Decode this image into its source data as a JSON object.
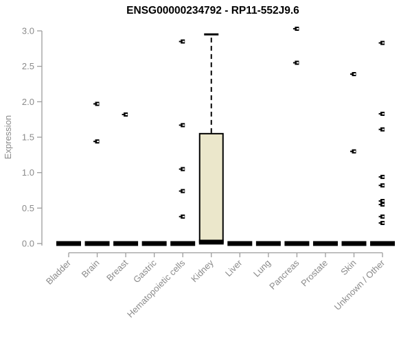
{
  "chart_data": {
    "type": "box",
    "title": "ENSG00000234792 - RP11-552J9.6",
    "xlabel": "",
    "ylabel": "Expression",
    "ylim": [
      0.0,
      3.0
    ],
    "yticks": [
      0.0,
      0.5,
      1.0,
      1.5,
      2.0,
      2.5,
      3.0
    ],
    "grid": false,
    "legend": "none",
    "categories": [
      "Bladder",
      "Brain",
      "Breast",
      "Gastric",
      "Hematopoietic cells",
      "Kidney",
      "Liver",
      "Lung",
      "Pancreas",
      "Prostate",
      "Skin",
      "Unknown / Other"
    ],
    "boxes": [
      {
        "label": "Bladder",
        "q1": 0,
        "median": 0,
        "q3": 0,
        "whisker_low": 0,
        "whisker_high": 0,
        "outliers": []
      },
      {
        "label": "Brain",
        "q1": 0,
        "median": 0,
        "q3": 0,
        "whisker_low": 0,
        "whisker_high": 0,
        "outliers": [
          1.97,
          1.44
        ]
      },
      {
        "label": "Breast",
        "q1": 0,
        "median": 0,
        "q3": 0,
        "whisker_low": 0,
        "whisker_high": 0,
        "outliers": [
          1.82
        ]
      },
      {
        "label": "Gastric",
        "q1": 0,
        "median": 0,
        "q3": 0,
        "whisker_low": 0,
        "whisker_high": 0,
        "outliers": []
      },
      {
        "label": "Hematopoietic cells",
        "q1": 0,
        "median": 0,
        "q3": 0,
        "whisker_low": 0,
        "whisker_high": 0,
        "outliers": [
          2.85,
          1.67,
          1.05,
          0.74,
          0.38
        ]
      },
      {
        "label": "Kidney",
        "q1": 0.02,
        "median": 0.02,
        "q3": 1.55,
        "whisker_low": 0,
        "whisker_high": 2.95,
        "outliers": []
      },
      {
        "label": "Liver",
        "q1": 0,
        "median": 0,
        "q3": 0,
        "whisker_low": 0,
        "whisker_high": 0,
        "outliers": []
      },
      {
        "label": "Lung",
        "q1": 0,
        "median": 0,
        "q3": 0,
        "whisker_low": 0,
        "whisker_high": 0,
        "outliers": []
      },
      {
        "label": "Pancreas",
        "q1": 0,
        "median": 0,
        "q3": 0,
        "whisker_low": 0,
        "whisker_high": 0,
        "outliers": [
          3.03,
          2.55
        ]
      },
      {
        "label": "Prostate",
        "q1": 0,
        "median": 0,
        "q3": 0,
        "whisker_low": 0,
        "whisker_high": 0,
        "outliers": []
      },
      {
        "label": "Skin",
        "q1": 0,
        "median": 0,
        "q3": 0,
        "whisker_low": 0,
        "whisker_high": 0,
        "outliers": [
          2.39,
          1.3
        ]
      },
      {
        "label": "Unknown / Other",
        "q1": 0,
        "median": 0,
        "q3": 0,
        "whisker_low": 0,
        "whisker_high": 0,
        "outliers": [
          2.83,
          1.83,
          1.61,
          0.94,
          0.82,
          0.6,
          0.55,
          0.38,
          0.29
        ]
      }
    ]
  },
  "colors": {
    "axis_line": "#9c9c9c",
    "axis_text": "#8a8a8a",
    "box_fill": "#EBE7CB",
    "box_border": "#000000",
    "whisker": "#000000",
    "title": "#000000",
    "background": "#ffffff"
  }
}
